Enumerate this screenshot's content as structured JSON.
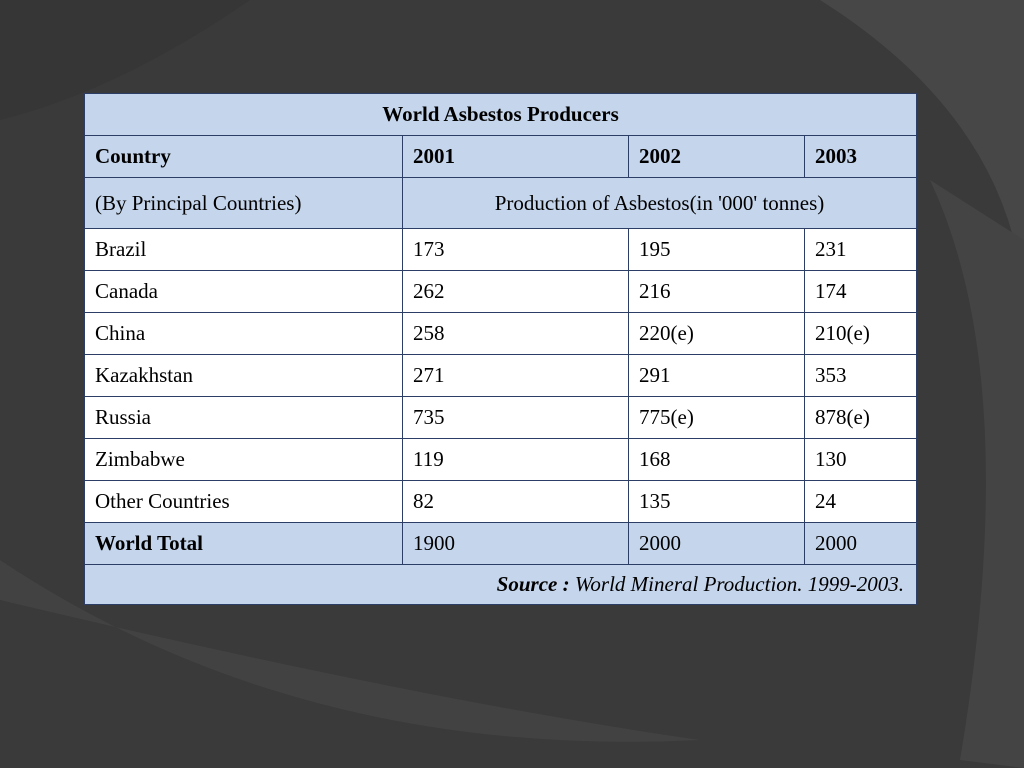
{
  "table": {
    "title": "World Asbestos Producers",
    "header": {
      "country_label": "Country",
      "years": [
        "2001",
        "2002",
        "2003"
      ]
    },
    "subheader": {
      "left": "(By Principal Countries)",
      "right": "Production of Asbestos(in '000' tonnes)"
    },
    "rows": [
      {
        "country": "Brazil",
        "v2001": "173",
        "v2002": "195",
        "v2003": "231"
      },
      {
        "country": "Canada",
        "v2001": "262",
        "v2002": "216",
        "v2003": "174"
      },
      {
        "country": "China",
        "v2001": "258",
        "v2002": "220(e)",
        "v2003": "210(e)"
      },
      {
        "country": "Kazakhstan",
        "v2001": "271",
        "v2002": "291",
        "v2003": "353"
      },
      {
        "country": "Russia",
        "v2001": "735",
        "v2002": "775(e)",
        "v2003": "878(e)"
      },
      {
        "country": "Zimbabwe",
        "v2001": "119",
        "v2002": "168",
        "v2003": "130"
      },
      {
        "country": "Other Countries",
        "v2001": "82",
        "v2002": "135",
        "v2003": "24"
      }
    ],
    "total": {
      "label": "World Total",
      "v2001": "1900",
      "v2002": "2000",
      "v2003": "2000"
    },
    "source": {
      "label": "Source :",
      "text": "World Mineral Production. 1999-2003."
    }
  },
  "colors": {
    "background": "#3a3a3a",
    "header_fill": "#c5d5ec",
    "border": "#2c3e66"
  }
}
